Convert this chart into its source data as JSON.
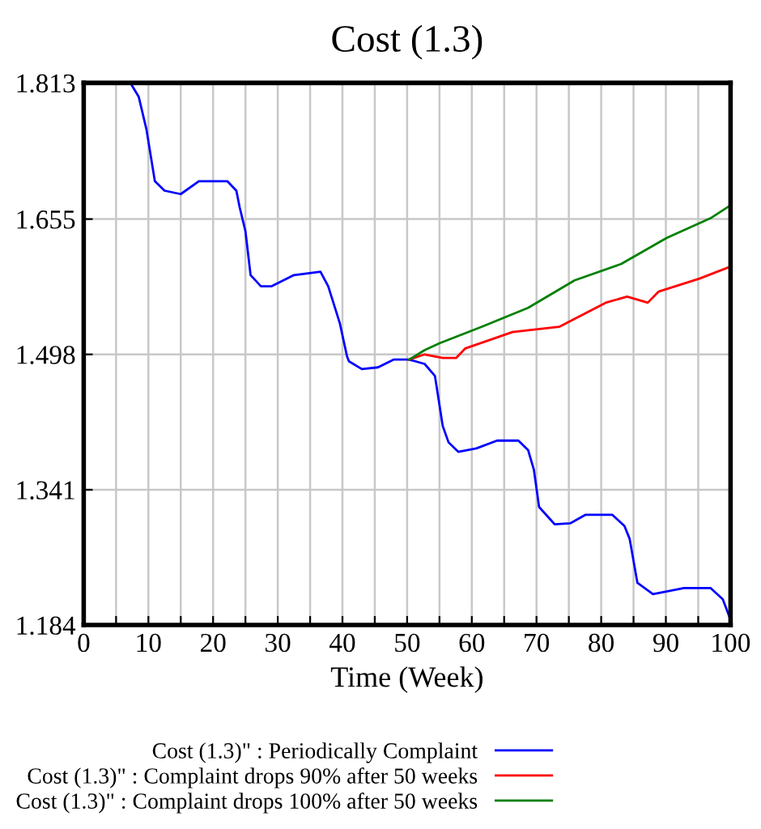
{
  "chart_data": {
    "type": "line",
    "title": "Cost (1.3)",
    "xlabel": "Time (Week)",
    "xlim": [
      0,
      100
    ],
    "xticks": [
      0,
      {
        "value": 5,
        "label": null
      },
      10,
      {
        "value": 15,
        "label": null
      },
      20,
      {
        "value": 25,
        "label": null
      },
      30,
      {
        "value": 35,
        "label": null
      },
      40,
      {
        "value": 45,
        "label": null
      },
      50,
      {
        "value": 55,
        "label": null
      },
      60,
      {
        "value": 65,
        "label": null
      },
      70,
      {
        "value": 75,
        "label": null
      },
      80,
      {
        "value": 85,
        "label": null
      },
      90,
      {
        "value": 95,
        "label": null
      },
      100
    ],
    "ylim": [
      1.184,
      1.813
    ],
    "yticks": [
      1.184,
      1.341,
      1.498,
      1.655,
      1.813
    ],
    "grid": true,
    "legend": "bottom",
    "marker": "none",
    "line_style": "solid",
    "series": [
      {
        "name": "Cost (1.3)\" : Periodically Complaint",
        "color": "#0000ff",
        "x": [
          0,
          7.3,
          8.5,
          9.7,
          11,
          12.5,
          15,
          17.8,
          22.2,
          23.6,
          24.1,
          25,
          25.8,
          27.4,
          29,
          32.5,
          36.6,
          37.8,
          39.6,
          40.7,
          41,
          43,
          45.5,
          47.9,
          50.3,
          52.7,
          54.3,
          55.5,
          56.4,
          57.9,
          60.7,
          63.9,
          67.2,
          68.7,
          69.6,
          70.4,
          72.8,
          75.2,
          77.6,
          81.7,
          83.6,
          84.4,
          85.6,
          88,
          90.1,
          92.8,
          96.9,
          98.8,
          100
        ],
        "values": [
          1.812,
          1.812,
          1.797,
          1.759,
          1.699,
          1.688,
          1.684,
          1.699,
          1.699,
          1.688,
          1.669,
          1.641,
          1.59,
          1.577,
          1.577,
          1.59,
          1.594,
          1.577,
          1.534,
          1.496,
          1.49,
          1.481,
          1.483,
          1.492,
          1.492,
          1.487,
          1.473,
          1.415,
          1.396,
          1.385,
          1.389,
          1.398,
          1.398,
          1.387,
          1.364,
          1.321,
          1.301,
          1.302,
          1.312,
          1.312,
          1.299,
          1.284,
          1.233,
          1.22,
          1.223,
          1.227,
          1.227,
          1.214,
          1.19
        ]
      },
      {
        "name": "Cost (1.3)\" : Complaint drops 90% after 50 weeks",
        "color": "#ff0000",
        "x": [
          50.3,
          52.7,
          55.5,
          57.6,
          59,
          66.3,
          73.5,
          80.7,
          84,
          87.2,
          88.9,
          95.2,
          100
        ],
        "values": [
          1.492,
          1.498,
          1.494,
          1.494,
          1.505,
          1.524,
          1.53,
          1.558,
          1.565,
          1.558,
          1.571,
          1.586,
          1.6
        ]
      },
      {
        "name": "Cost (1.3)\" : Complaint drops 100% after 50 weeks",
        "color": "#008000",
        "x": [
          50.3,
          52.7,
          55,
          61.5,
          68.7,
          75.9,
          83.1,
          90.1,
          96.9,
          100
        ],
        "values": [
          1.492,
          1.503,
          1.511,
          1.53,
          1.552,
          1.584,
          1.603,
          1.633,
          1.656,
          1.671
        ]
      }
    ]
  }
}
